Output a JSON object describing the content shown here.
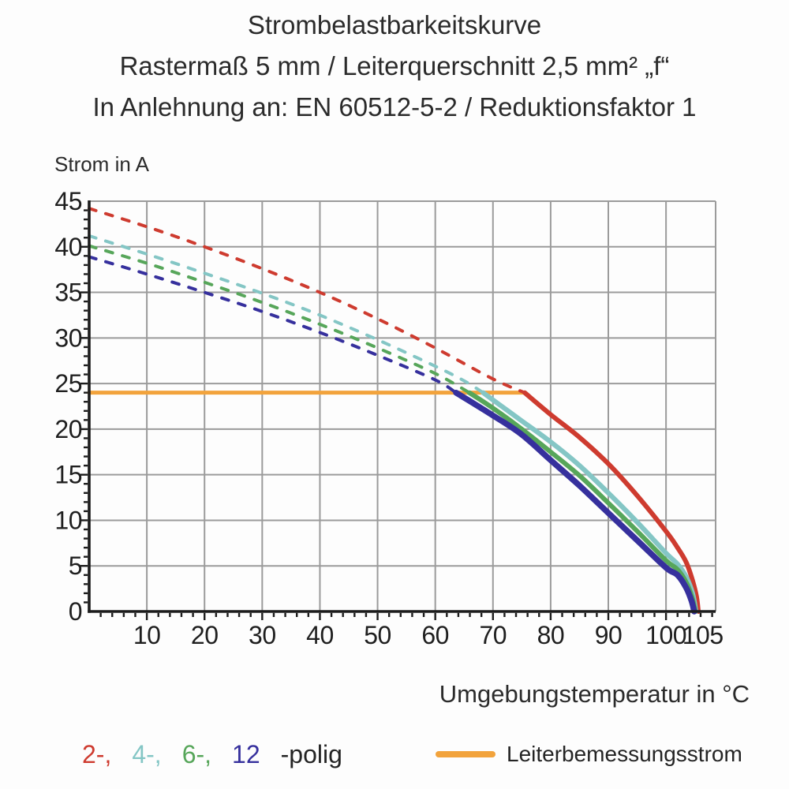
{
  "page": {
    "background": "#fdfdfd",
    "text_color": "#2a2a2a"
  },
  "title": {
    "line1": "Strombelastbarkeitskurve",
    "line2": "Rastermaß 5 mm / Leiterquerschnitt 2,5 mm² „f“",
    "line3": "In Anlehnung an: EN 60512-5-2 / Reduktionsfaktor 1"
  },
  "axes": {
    "y_label": "Strom in A",
    "x_label": "Umgebungstemperatur in °C"
  },
  "legend": {
    "pole_items": [
      {
        "label": "2-,",
        "color": "#CE3B2F"
      },
      {
        "label": "4-,",
        "color": "#84C6C5"
      },
      {
        "label": "6-,",
        "color": "#57A65A"
      },
      {
        "label": "12",
        "color": "#36309D"
      }
    ],
    "pole_suffix": "-polig",
    "rated_label": "Leiterbemessungsstrom",
    "rated_color": "#F2A33C"
  },
  "chart_data": {
    "type": "line",
    "title": "Strombelastbarkeitskurve",
    "xlabel": "Umgebungstemperatur in °C",
    "ylabel": "Strom in A",
    "xlim": [
      0,
      108.6
    ],
    "ylim": [
      0,
      45
    ],
    "x_gridlines": [
      10,
      20,
      30,
      40,
      50,
      60,
      70,
      80,
      90,
      100
    ],
    "x_tick_labels": [
      10,
      20,
      30,
      40,
      50,
      60,
      70,
      80,
      90,
      100,
      105
    ],
    "y_gridlines": [
      5,
      10,
      15,
      20,
      25,
      30,
      35,
      40,
      45
    ],
    "y_tick_labels": [
      0,
      5,
      10,
      15,
      20,
      25,
      30,
      35,
      40,
      45
    ],
    "x_minor_step": 2,
    "y_minor_step": 1,
    "grid": true,
    "colors": {
      "grid": "#9B9B9B",
      "axis": "#1c1c1c",
      "tick_text": "#1f1f1f"
    },
    "rated_line": {
      "label": "Leiterbemessungsstrom",
      "value_a": 24,
      "x_start": 0,
      "x_end": 75.5,
      "color": "#F2A33C"
    },
    "series": [
      {
        "name": "2-polig",
        "color": "#CE3B2F",
        "dashed_points": [
          [
            0,
            44.2
          ],
          [
            10,
            42.2
          ],
          [
            20,
            40.0
          ],
          [
            30,
            37.6
          ],
          [
            40,
            35.0
          ],
          [
            50,
            32.1
          ],
          [
            60,
            28.9
          ],
          [
            70,
            25.5
          ],
          [
            75.5,
            24.0
          ]
        ],
        "solid_points": [
          [
            75.5,
            24.0
          ],
          [
            80,
            21.6
          ],
          [
            85,
            19.1
          ],
          [
            90,
            16.2
          ],
          [
            95,
            12.7
          ],
          [
            100,
            8.8
          ],
          [
            102,
            7.0
          ],
          [
            103.5,
            5.4
          ],
          [
            104.6,
            3.4
          ],
          [
            105.3,
            1.6
          ],
          [
            105.6,
            0
          ]
        ]
      },
      {
        "name": "4-polig",
        "color": "#84C6C5",
        "dashed_points": [
          [
            0,
            41.2
          ],
          [
            10,
            39.2
          ],
          [
            20,
            37.1
          ],
          [
            30,
            34.9
          ],
          [
            40,
            32.5
          ],
          [
            50,
            29.8
          ],
          [
            60,
            26.9
          ],
          [
            65,
            25.3
          ],
          [
            68.3,
            24.0
          ]
        ],
        "solid_points": [
          [
            68.3,
            24.0
          ],
          [
            70,
            23.2
          ],
          [
            75,
            20.9
          ],
          [
            80,
            18.6
          ],
          [
            85,
            16.0
          ],
          [
            90,
            13.0
          ],
          [
            95,
            9.8
          ],
          [
            100,
            6.4
          ],
          [
            102,
            5.2
          ],
          [
            103.5,
            3.8
          ],
          [
            104.6,
            2.0
          ],
          [
            105.2,
            0
          ]
        ]
      },
      {
        "name": "6-polig",
        "color": "#57A65A",
        "dashed_points": [
          [
            0,
            40.1
          ],
          [
            10,
            38.2
          ],
          [
            20,
            36.1
          ],
          [
            30,
            33.9
          ],
          [
            40,
            31.5
          ],
          [
            50,
            28.9
          ],
          [
            60,
            26.1
          ],
          [
            65.9,
            24.0
          ]
        ],
        "solid_points": [
          [
            65.9,
            24.0
          ],
          [
            70,
            22.3
          ],
          [
            75,
            20.0
          ],
          [
            80,
            17.5
          ],
          [
            85,
            14.9
          ],
          [
            90,
            11.9
          ],
          [
            95,
            8.8
          ],
          [
            100,
            5.6
          ],
          [
            102,
            4.6
          ],
          [
            103.5,
            3.2
          ],
          [
            104.5,
            1.6
          ],
          [
            105.1,
            0
          ]
        ]
      },
      {
        "name": "12-polig",
        "color": "#36309D",
        "dashed_points": [
          [
            0,
            38.9
          ],
          [
            10,
            37.0
          ],
          [
            20,
            35.0
          ],
          [
            30,
            32.9
          ],
          [
            40,
            30.6
          ],
          [
            50,
            28.1
          ],
          [
            60,
            25.4
          ],
          [
            63.6,
            24.0
          ]
        ],
        "solid_points": [
          [
            63.6,
            24.0
          ],
          [
            70,
            21.5
          ],
          [
            75,
            19.4
          ],
          [
            80,
            16.6
          ],
          [
            85,
            13.8
          ],
          [
            90,
            10.8
          ],
          [
            95,
            7.8
          ],
          [
            100,
            4.8
          ],
          [
            102,
            4.0
          ],
          [
            103.5,
            2.6
          ],
          [
            104.4,
            1.2
          ],
          [
            104.9,
            0
          ]
        ]
      }
    ]
  }
}
